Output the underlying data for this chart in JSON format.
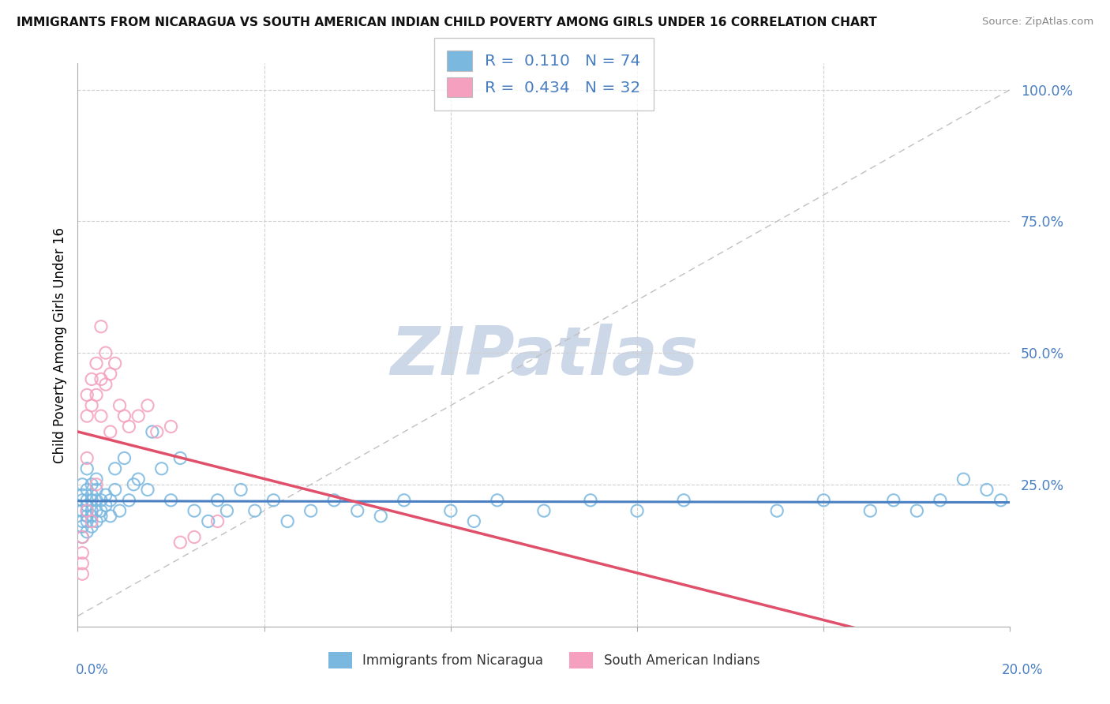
{
  "title": "IMMIGRANTS FROM NICARAGUA VS SOUTH AMERICAN INDIAN CHILD POVERTY AMONG GIRLS UNDER 16 CORRELATION CHART",
  "source": "Source: ZipAtlas.com",
  "ylabel": "Child Poverty Among Girls Under 16",
  "R_blue": 0.11,
  "N_blue": 74,
  "R_pink": 0.434,
  "N_pink": 32,
  "color_blue": "#7ab8e0",
  "color_pink": "#f4a0be",
  "trend_blue": "#4a7fc1",
  "trend_pink": "#e0506a",
  "watermark_color": "#ccd8e8",
  "legend_label_blue": "Immigrants from Nicaragua",
  "legend_label_pink": "South American Indians",
  "xlim": [
    0.0,
    0.2
  ],
  "ylim": [
    -0.02,
    1.05
  ],
  "yticks": [
    0.25,
    0.5,
    0.75,
    1.0
  ],
  "ytick_labels": [
    "25.0%",
    "50.0%",
    "75.0%",
    "100.0%"
  ],
  "blue_x": [
    0.001,
    0.001,
    0.001,
    0.001,
    0.001,
    0.001,
    0.001,
    0.002,
    0.002,
    0.002,
    0.002,
    0.002,
    0.002,
    0.002,
    0.002,
    0.003,
    0.003,
    0.003,
    0.003,
    0.003,
    0.003,
    0.004,
    0.004,
    0.004,
    0.004,
    0.004,
    0.005,
    0.005,
    0.005,
    0.006,
    0.006,
    0.007,
    0.007,
    0.008,
    0.008,
    0.009,
    0.01,
    0.011,
    0.012,
    0.013,
    0.015,
    0.016,
    0.018,
    0.02,
    0.022,
    0.025,
    0.028,
    0.03,
    0.032,
    0.035,
    0.038,
    0.042,
    0.045,
    0.05,
    0.055,
    0.06,
    0.065,
    0.07,
    0.08,
    0.085,
    0.09,
    0.1,
    0.11,
    0.12,
    0.13,
    0.15,
    0.16,
    0.17,
    0.175,
    0.18,
    0.185,
    0.19,
    0.195,
    0.198
  ],
  "blue_y": [
    0.2,
    0.22,
    0.18,
    0.25,
    0.17,
    0.15,
    0.23,
    0.21,
    0.19,
    0.24,
    0.2,
    0.16,
    0.22,
    0.18,
    0.28,
    0.2,
    0.22,
    0.19,
    0.25,
    0.17,
    0.23,
    0.2,
    0.22,
    0.26,
    0.18,
    0.24,
    0.19,
    0.22,
    0.2,
    0.21,
    0.23,
    0.22,
    0.19,
    0.28,
    0.24,
    0.2,
    0.3,
    0.22,
    0.25,
    0.26,
    0.24,
    0.35,
    0.28,
    0.22,
    0.3,
    0.2,
    0.18,
    0.22,
    0.2,
    0.24,
    0.2,
    0.22,
    0.18,
    0.2,
    0.22,
    0.2,
    0.19,
    0.22,
    0.2,
    0.18,
    0.22,
    0.2,
    0.22,
    0.2,
    0.22,
    0.2,
    0.22,
    0.2,
    0.22,
    0.2,
    0.22,
    0.26,
    0.24,
    0.22
  ],
  "pink_x": [
    0.001,
    0.001,
    0.001,
    0.001,
    0.002,
    0.002,
    0.002,
    0.002,
    0.003,
    0.003,
    0.003,
    0.004,
    0.004,
    0.004,
    0.005,
    0.005,
    0.005,
    0.006,
    0.006,
    0.007,
    0.007,
    0.008,
    0.009,
    0.01,
    0.011,
    0.013,
    0.015,
    0.017,
    0.02,
    0.022,
    0.025,
    0.03
  ],
  "pink_y": [
    0.08,
    0.12,
    0.1,
    0.15,
    0.38,
    0.42,
    0.3,
    0.2,
    0.45,
    0.4,
    0.18,
    0.48,
    0.42,
    0.25,
    0.45,
    0.55,
    0.38,
    0.5,
    0.44,
    0.46,
    0.35,
    0.48,
    0.4,
    0.38,
    0.36,
    0.38,
    0.4,
    0.35,
    0.36,
    0.14,
    0.15,
    0.18
  ]
}
